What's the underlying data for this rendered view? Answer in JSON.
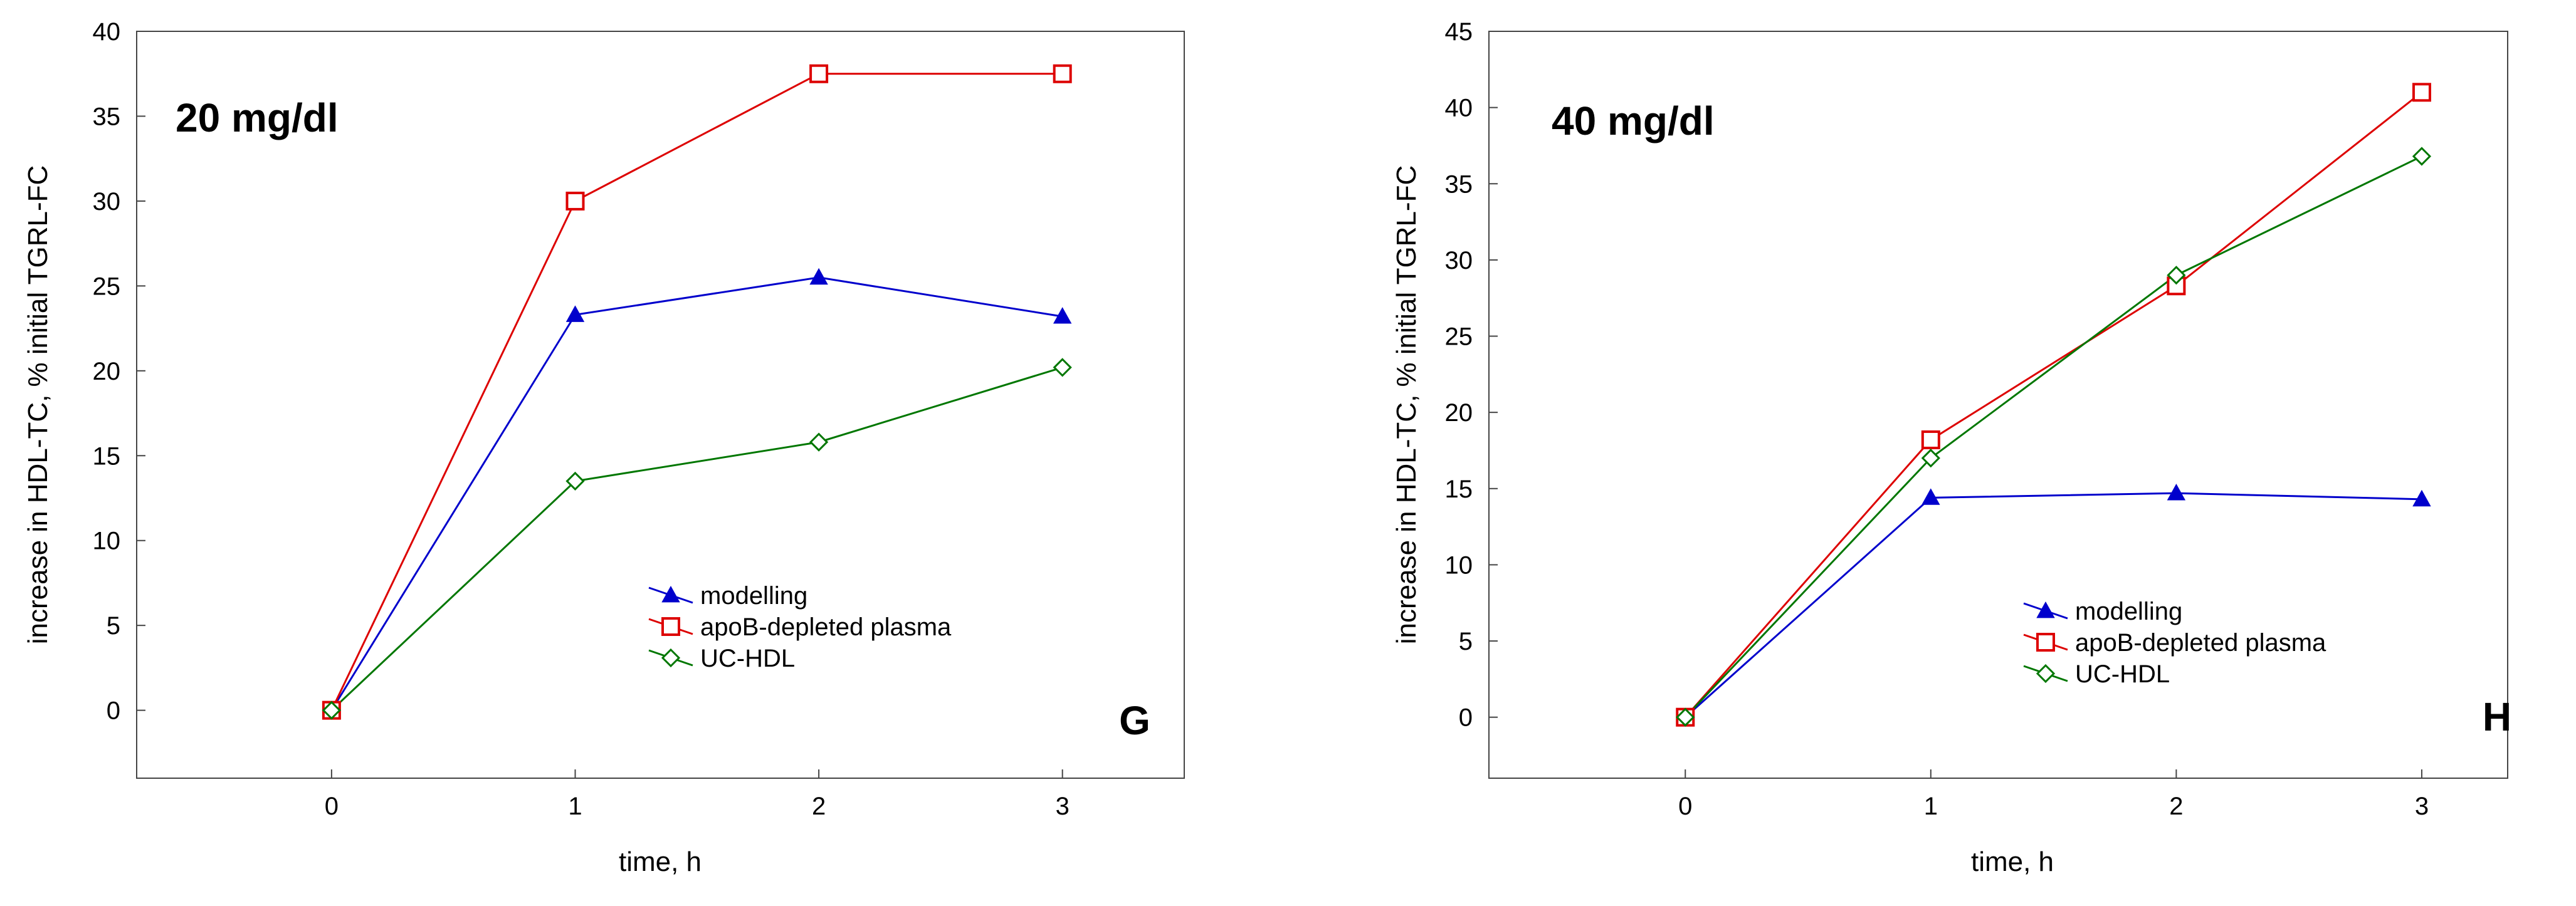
{
  "chart_data": [
    {
      "type": "line",
      "title": "20 mg/dl",
      "panel_label": "G",
      "xlabel": "time, h",
      "ylabel": "increase in HDL-TC, % initial TGRL-FC",
      "x": [
        0,
        1,
        2,
        3
      ],
      "xlim": [
        -0.8,
        3.5
      ],
      "ylim": [
        -4,
        40
      ],
      "xticks": [
        "0",
        "1",
        "2",
        "3"
      ],
      "yticks": [
        "0",
        "5",
        "10",
        "15",
        "20",
        "25",
        "30",
        "35",
        "40"
      ],
      "legend_position": "lower-right",
      "series": [
        {
          "name": "modelling",
          "color": "#0000cc",
          "marker": "triangle",
          "values": [
            0,
            23.3,
            25.5,
            23.2
          ]
        },
        {
          "name": "apoB-depleted plasma",
          "color": "#dd0000",
          "marker": "square",
          "values": [
            0,
            30,
            37.5,
            37.5
          ]
        },
        {
          "name": "UC-HDL",
          "color": "#007700",
          "marker": "diamond",
          "values": [
            0,
            13.5,
            15.8,
            20.2
          ]
        }
      ]
    },
    {
      "type": "line",
      "title": "40 mg/dl",
      "panel_label": "H",
      "xlabel": "time, h",
      "ylabel": "increase in HDL-TC, % initial TGRL-FC",
      "x": [
        0,
        1,
        2,
        3
      ],
      "xlim": [
        -0.8,
        3.35
      ],
      "ylim": [
        -4,
        45
      ],
      "xticks": [
        "0",
        "1",
        "2",
        "3"
      ],
      "yticks": [
        "0",
        "5",
        "10",
        "15",
        "20",
        "25",
        "30",
        "35",
        "40",
        "45"
      ],
      "legend_position": "lower-right",
      "series": [
        {
          "name": "modelling",
          "color": "#0000cc",
          "marker": "triangle",
          "values": [
            0,
            14.4,
            14.7,
            14.3
          ]
        },
        {
          "name": "apoB-depleted plasma",
          "color": "#dd0000",
          "marker": "square",
          "values": [
            0,
            18.2,
            28.3,
            41
          ]
        },
        {
          "name": "UC-HDL",
          "color": "#007700",
          "marker": "diamond",
          "values": [
            0,
            17,
            29,
            36.8
          ]
        }
      ]
    }
  ]
}
